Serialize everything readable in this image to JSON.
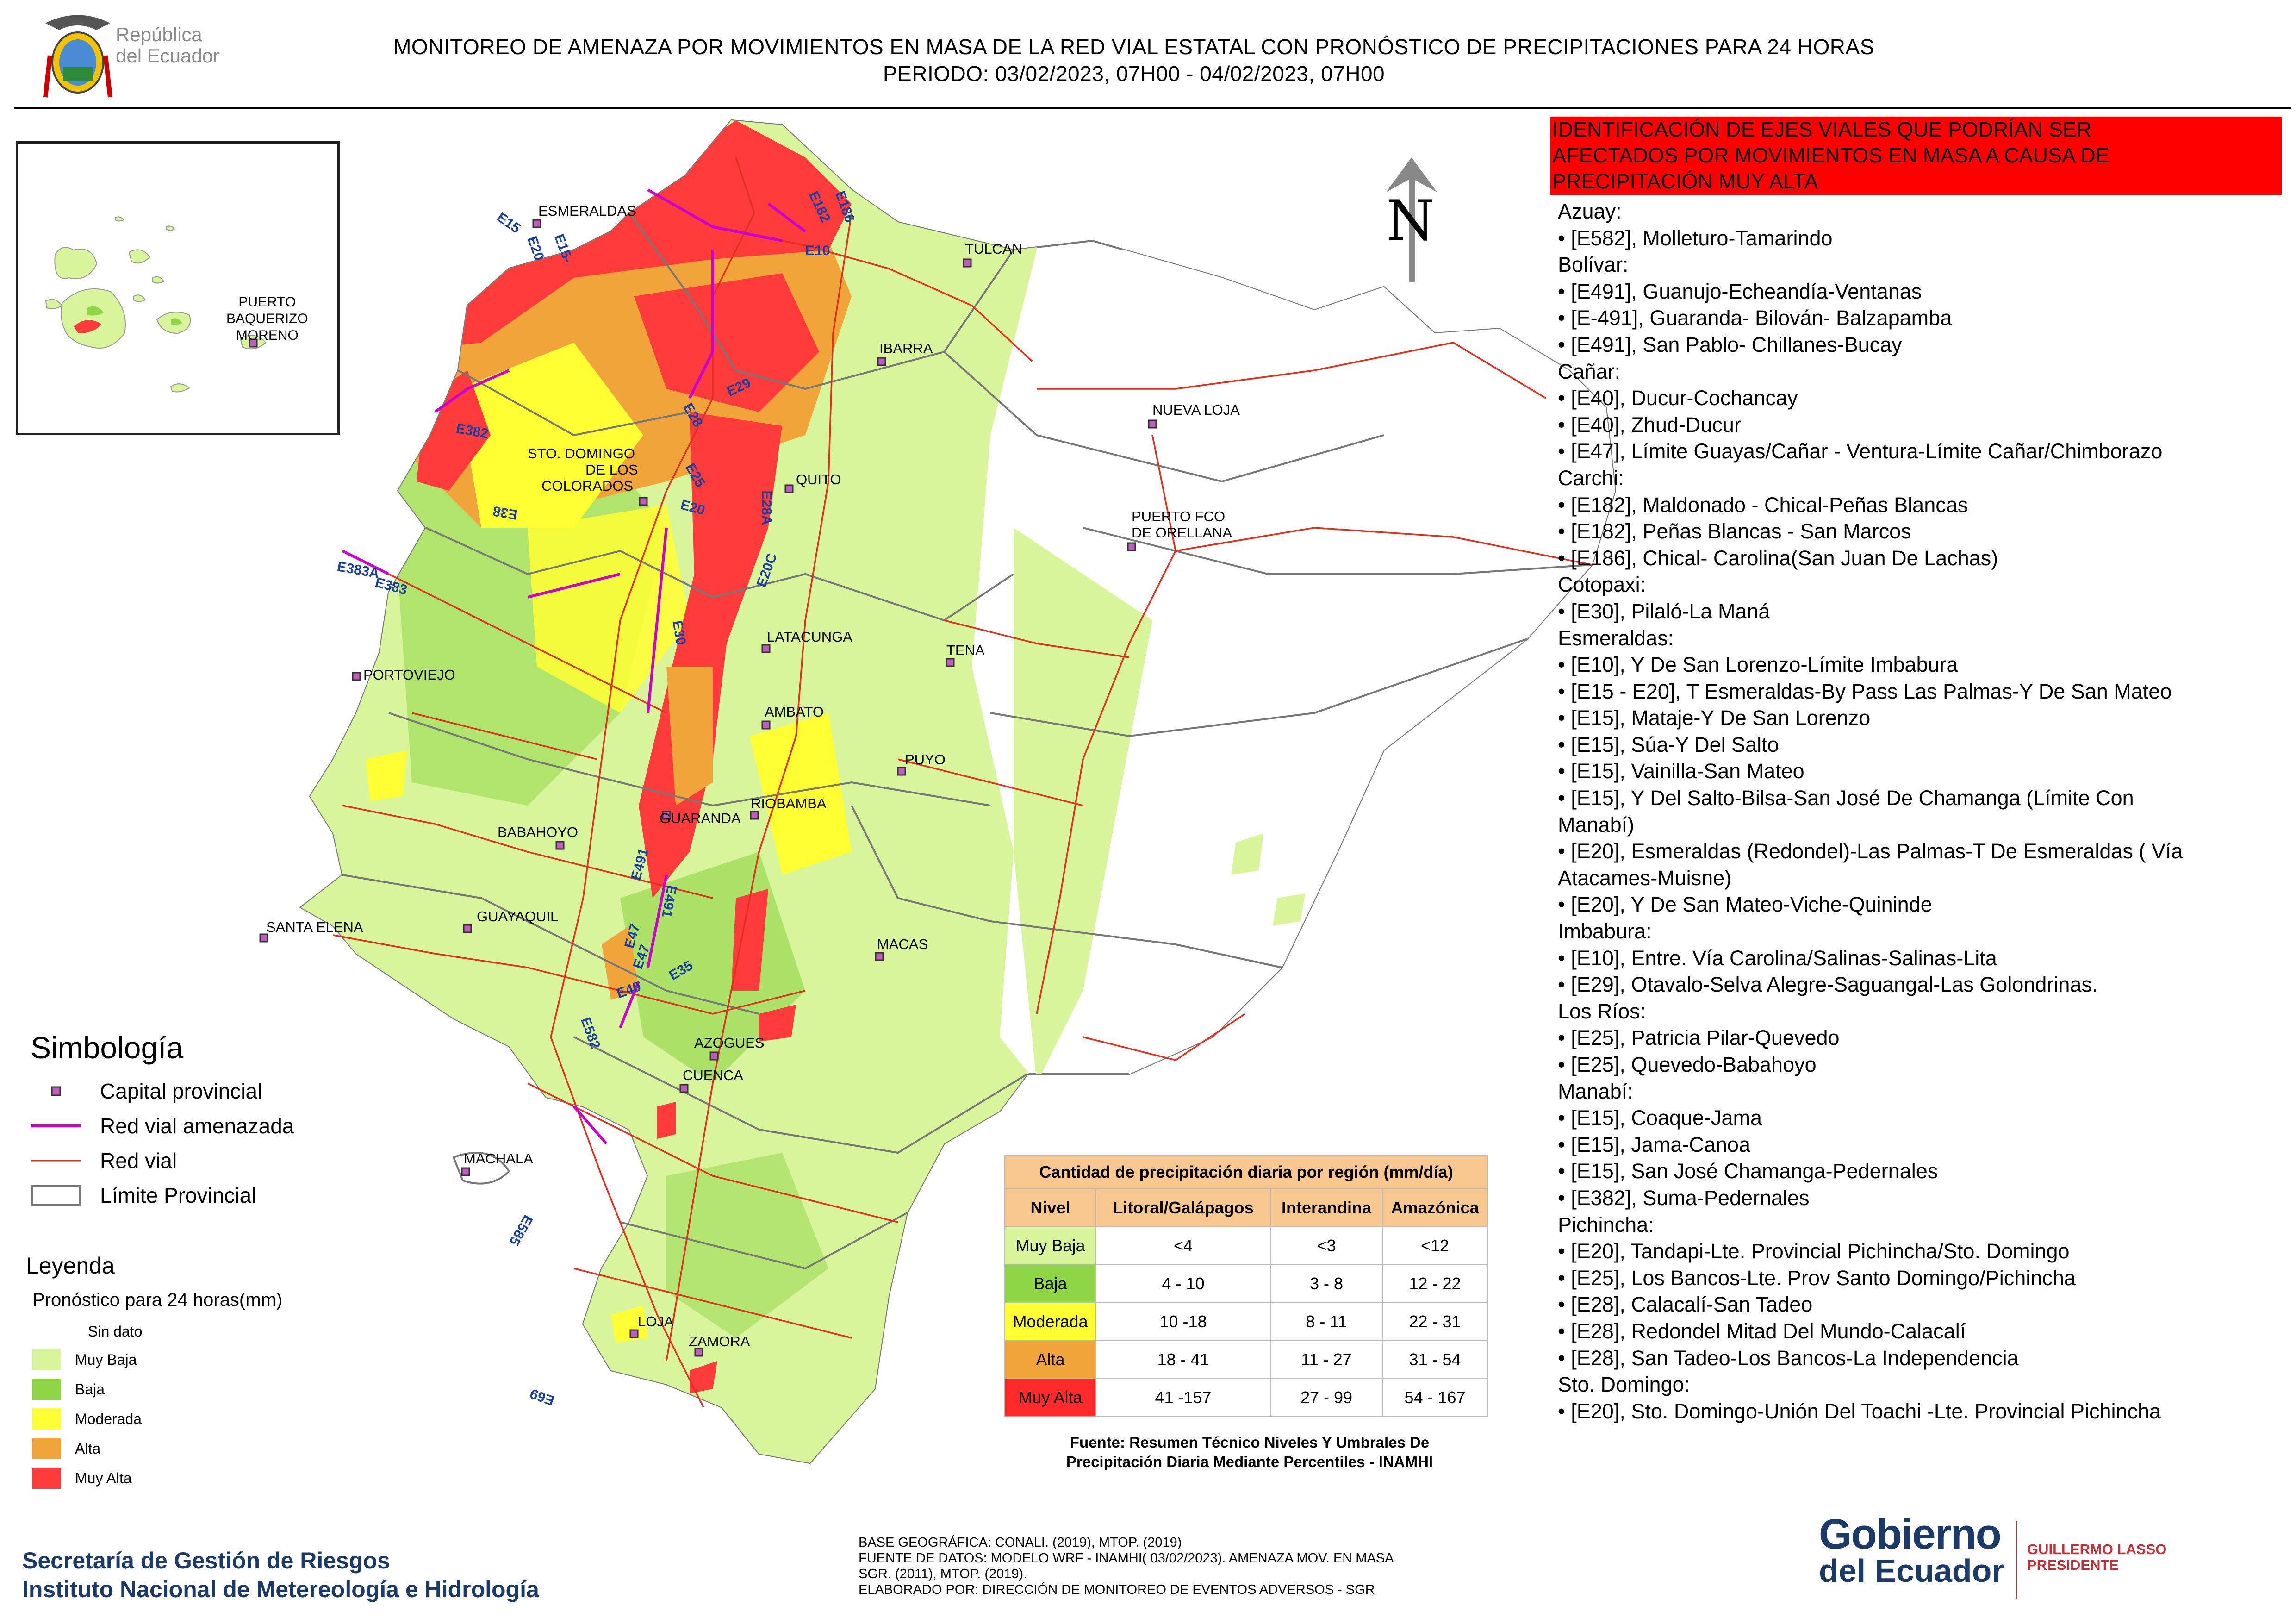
{
  "header": {
    "title_line1": "MONITOREO DE AMENAZA POR MOVIMIENTOS EN MASA DE LA RED VIAL  ESTATAL  CON PRONÓSTICO  DE  PRECIPITACIONES PARA 24 HORAS",
    "title_line2": "PERIODO: 03/02/2023, 07H00 - 04/02/2023, 07H00",
    "rep_line1": "República",
    "rep_line2": "del Ecuador"
  },
  "inset": {
    "label_line1": "PUERTO",
    "label_line2": "BAQUERIZO",
    "label_line3": "MORENO"
  },
  "north": {
    "letter": "N"
  },
  "map_labels": {
    "cities": [
      "ESMERALDAS",
      "TULCAN",
      "IBARRA",
      "NUEVA LOJA",
      "STO. DOMINGO",
      "DE LOS",
      "COLORADOS",
      "QUITO",
      "PUERTO FCO",
      "DE ORELLANA",
      "LATACUNGA",
      "TENA",
      "PORTOVIEJO",
      "AMBATO",
      "PUYO",
      "GUARANDA",
      "RIOBAMBA",
      "BABAHOYO",
      "GUAYAQUIL",
      "SANTA ELENA",
      "MACAS",
      "AZOGUES",
      "CUENCA",
      "MACHALA",
      "LOJA",
      "ZAMORA"
    ],
    "roads": [
      "E15",
      "E20",
      "E15-",
      "E182",
      "E186",
      "E10",
      "E29",
      "E28",
      "E382",
      "E25",
      "E20",
      "E28A",
      "E38",
      "E383A",
      "E383",
      "E20C",
      "E30",
      "E491",
      "E491",
      "E47",
      "E47",
      "E35",
      "E40",
      "E582",
      "E585",
      "E69"
    ]
  },
  "simbologia": {
    "title": "Simbología",
    "items": [
      "Capital provincial",
      "Red vial amenazada",
      "Red vial",
      "Límite Provincial"
    ]
  },
  "leyenda": {
    "title": "Leyenda",
    "subtitle": "Pronóstico para 24 horas(mm)",
    "items": [
      {
        "label": "Sin dato",
        "color": "#ffffff"
      },
      {
        "label": " Muy Baja",
        "color": "#d8f59b"
      },
      {
        "label": "Baja",
        "color": "#8fd646"
      },
      {
        "label": "Moderada",
        "color": "#ffff33"
      },
      {
        "label": "Alta",
        "color": "#f0a43a"
      },
      {
        "label": "Muy Alta",
        "color": "#ff3b3b"
      }
    ]
  },
  "right_panel": {
    "header_line1": "IDENTIFICACIÓN DE EJES VIALES QUE PODRÍAN SER",
    "header_line2": "AFECTADOS POR MOVIMIENTOS EN MASA A CAUSA DE",
    "header_line3": "PRECIPITACIÓN MUY ALTA",
    "lines": [
      "Azuay:",
      "• [E582], Molleturo-Tamarindo",
      "Bolívar:",
      "• [E491], Guanujo-Echeandía-Ventanas",
      "• [E-491], Guaranda- Bilován- Balzapamba",
      "• [E491], San Pablo- Chillanes-Bucay",
      "Cañar:",
      "• [E40], Ducur-Cochancay",
      "• [E40], Zhud-Ducur",
      "• [E47], Límite Guayas/Cañar - Ventura-Límite Cañar/Chimborazo",
      "Carchi:",
      "• [E182], Maldonado - Chical-Peñas Blancas",
      "• [E182], Peñas Blancas - San Marcos",
      "• [E186], Chical- Carolina(San Juan De Lachas)",
      "Cotopaxi:",
      "• [E30], Pilaló-La Maná",
      "Esmeraldas:",
      "• [E10], Y De San Lorenzo-Límite Imbabura",
      "• [E15 - E20], T Esmeraldas-By Pass Las Palmas-Y De San Mateo",
      "• [E15], Mataje-Y De San Lorenzo",
      "• [E15], Súa-Y Del Salto",
      "• [E15], Vainilla-San Mateo",
      "• [E15], Y Del Salto-Bilsa-San José De Chamanga (Límite Con",
      "Manabí)",
      "• [E20], Esmeraldas (Redondel)-Las Palmas-T De Esmeraldas ( Vía",
      "Atacames-Muisne)",
      "• [E20], Y De San Mateo-Viche-Quininde",
      "Imbabura:",
      "• [E10], Entre. Vía Carolina/Salinas-Salinas-Lita",
      "• [E29], Otavalo-Selva Alegre-Saguangal-Las Golondrinas.",
      "Los Ríos:",
      "• [E25], Patricia Pilar-Quevedo",
      "• [E25], Quevedo-Babahoyo",
      "Manabí:",
      "• [E15], Coaque-Jama",
      "• [E15], Jama-Canoa",
      "• [E15], San José Chamanga-Pedernales",
      "• [E382], Suma-Pedernales",
      "Pichincha:",
      "• [E20], Tandapi-Lte. Provincial Pichincha/Sto. Domingo",
      "• [E25], Los Bancos-Lte. Prov Santo Domingo/Pichincha",
      "• [E28], Calacalí-San Tadeo",
      "• [E28], Redondel Mitad Del Mundo-Calacalí",
      "• [E28], San Tadeo-Los Bancos-La Independencia",
      "Sto. Domingo:",
      "• [E20], Sto. Domingo-Unión Del Toachi -Lte. Provincial Pichincha"
    ]
  },
  "precip_table": {
    "title": "Cantidad de precipitación diaria por región (mm/día)",
    "headers": [
      "Nivel",
      "Litoral/Galápagos",
      "Interandina",
      "Amazónica"
    ],
    "rows": [
      {
        "nivel": "Muy Baja",
        "color": "#d8f59b",
        "litoral": "<4",
        "interandina": "<3",
        "amazonica": "<12"
      },
      {
        "nivel": "Baja",
        "color": "#8fd646",
        "litoral": "4 - 10",
        "interandina": "3 - 8",
        "amazonica": "12 - 22"
      },
      {
        "nivel": "Moderada",
        "color": "#ffff33",
        "litoral": "10 -18",
        "interandina": "8 - 11",
        "amazonica": "22 - 31"
      },
      {
        "nivel": "Alta",
        "color": "#f0a43a",
        "litoral": "18 - 41",
        "interandina": "11 - 27",
        "amazonica": "31 - 54"
      },
      {
        "nivel": "Muy Alta",
        "color": "#ff2b2b",
        "litoral": "41 -157",
        "interandina": "27 - 99",
        "amazonica": "54 - 167"
      }
    ],
    "source_line1": "Fuente: Resumen Técnico Niveles Y Umbrales De",
    "source_line2": "Precipitación Diaria Mediante Percentiles - INAMHI"
  },
  "footer": {
    "org_line1": "Secretaría de Gestión de Riesgos",
    "org_line2": "Instituto Nacional de Metereología e Hidrología",
    "src_line1": "BASE GEOGRÁFICA: CONALI. (2019), MTOP. (2019)",
    "src_line2": "FUENTE DE DATOS: MODELO WRF - INAMHI( 03/02/2023).  AMENAZA MOV. EN MASA",
    "src_line3": "SGR. (2011), MTOP. (2019).",
    "src_line4": "ELABORADO POR: DIRECCIÓN DE MONITOREO DE EVENTOS ADVERSOS - SGR",
    "gob_line1": "Gobierno",
    "gob_line2": "del Ecuador",
    "pres_line1": "GUILLERMO LASSO",
    "pres_line2": "PRESIDENTE"
  },
  "colors": {
    "muy_baja": "#d8f59b",
    "baja": "#8fd646",
    "moderada": "#ffff33",
    "alta": "#f0a43a",
    "muy_alta": "#ff3b3b",
    "red_vial": "#e0301e",
    "red_vial_amenazada": "#cc00cc",
    "header_red": "#ff0000"
  }
}
